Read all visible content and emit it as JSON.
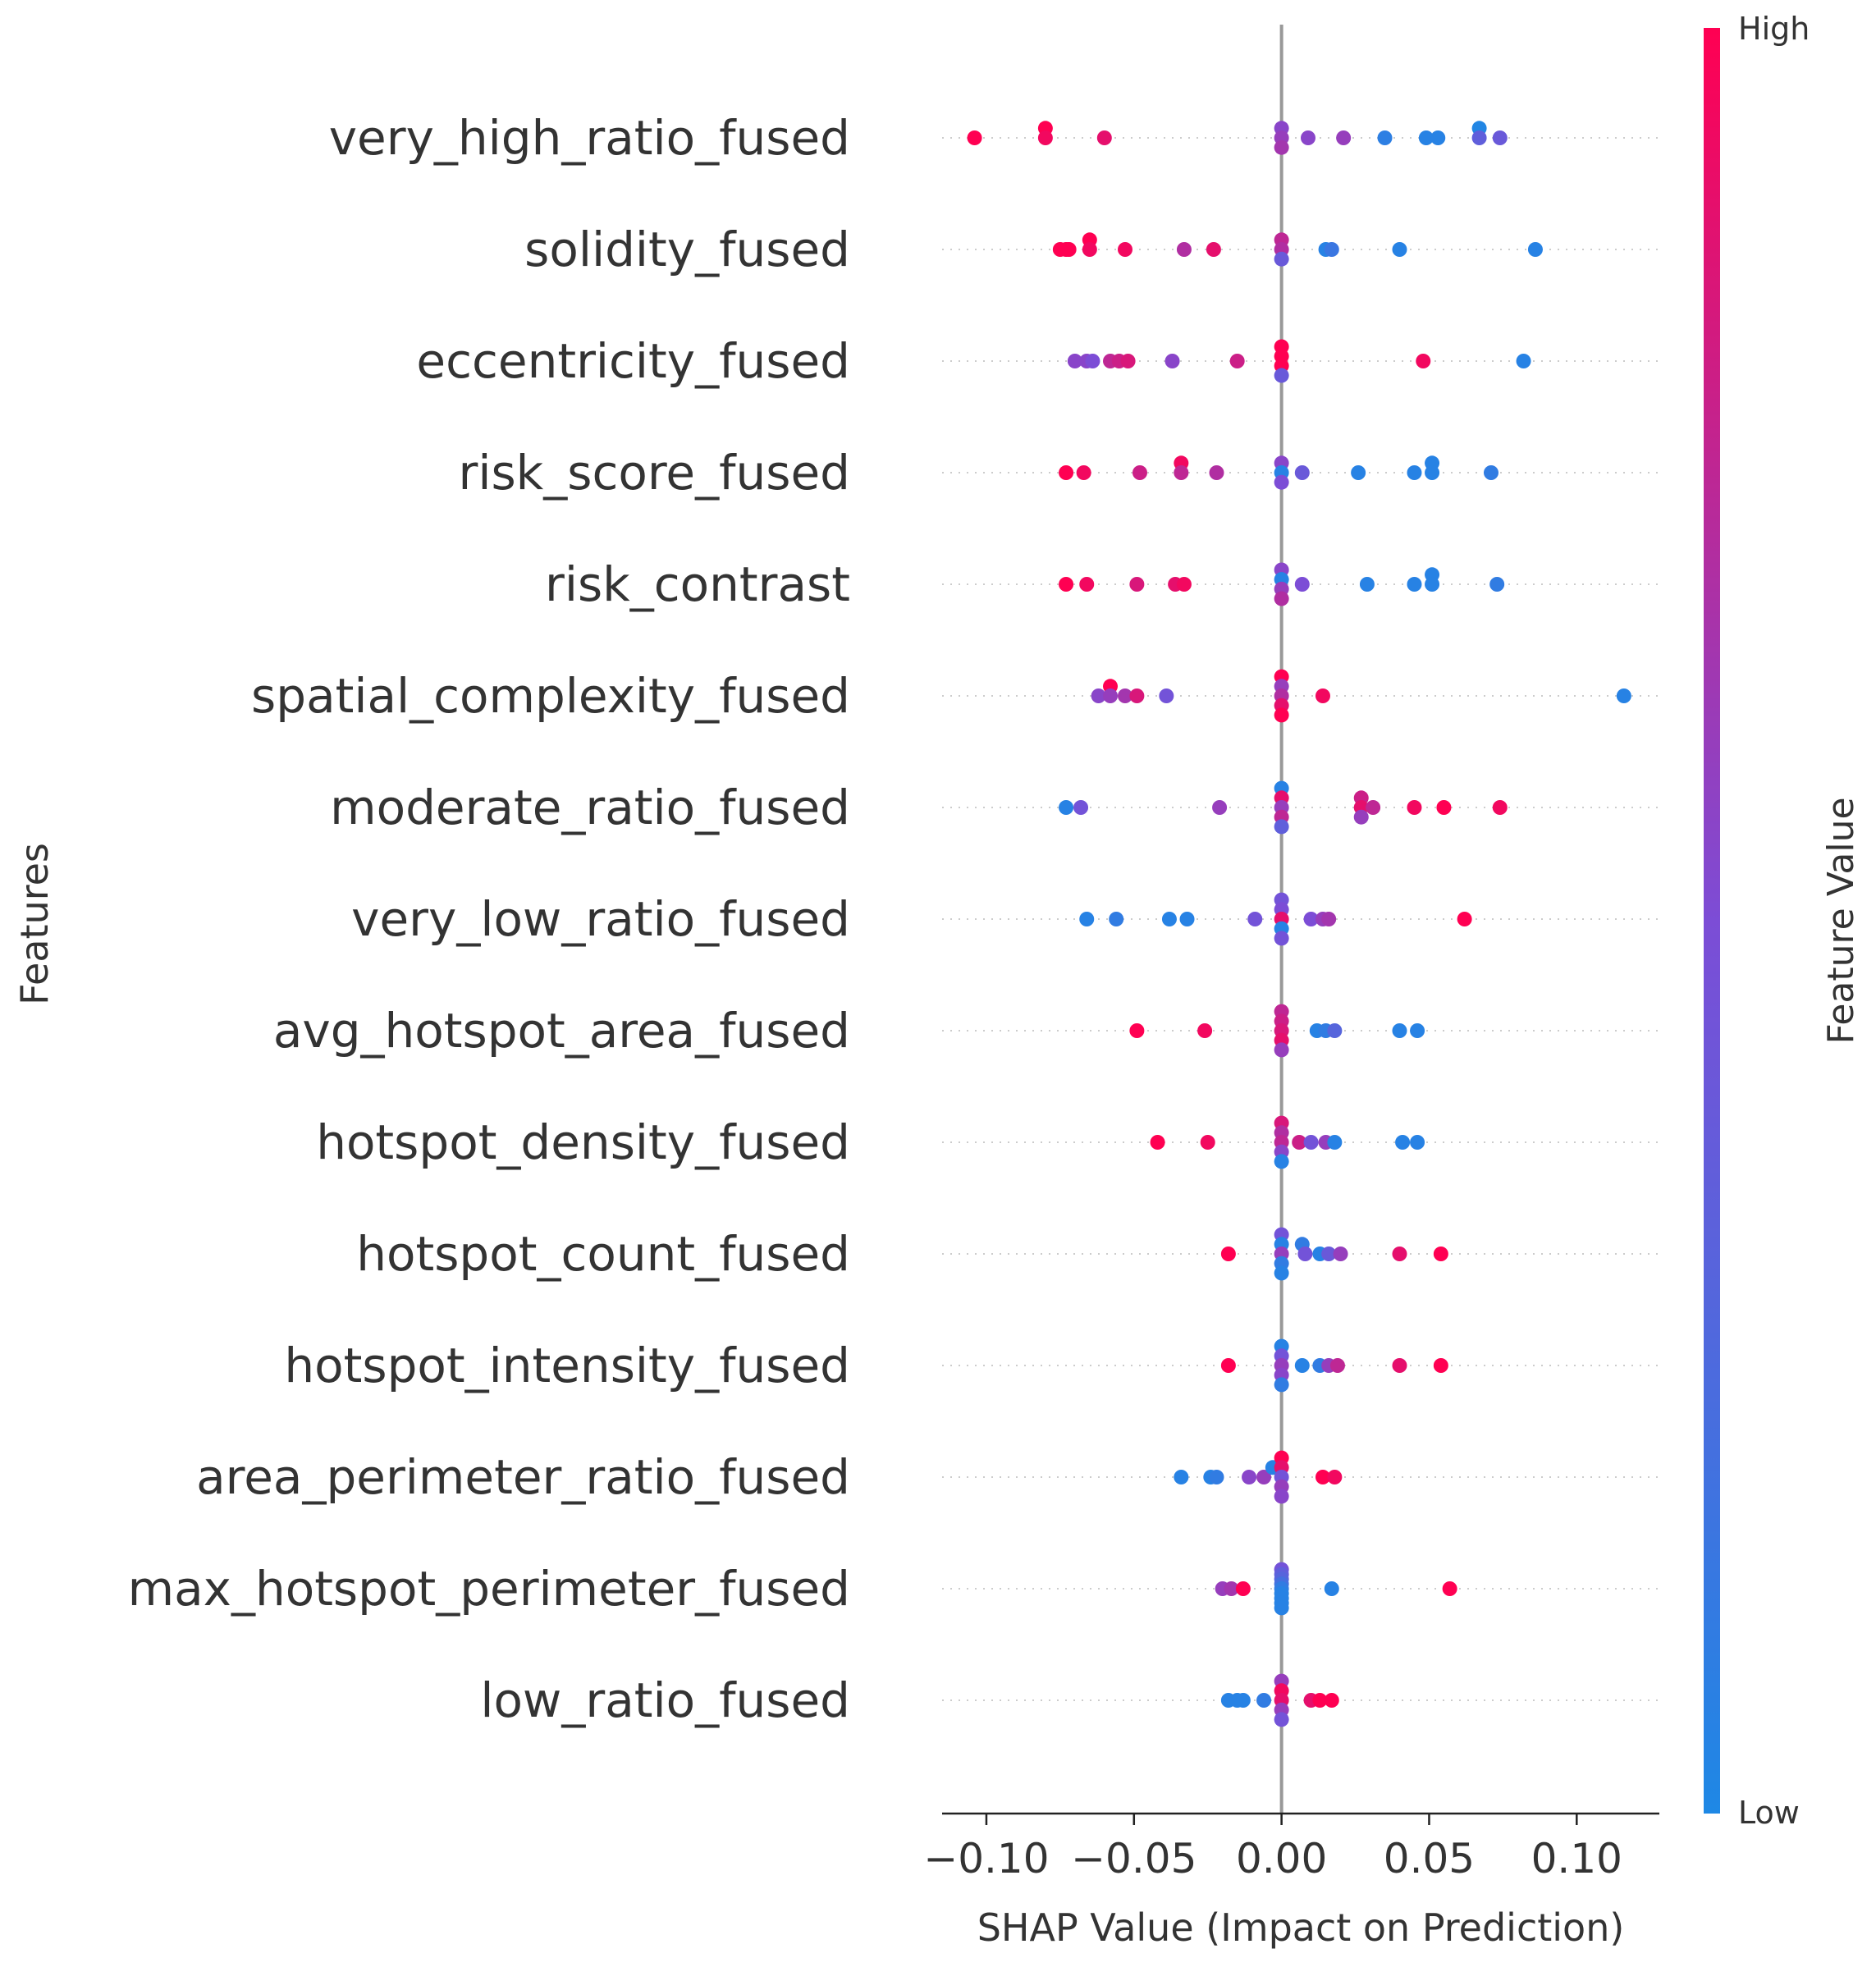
{
  "chart_data": {
    "type": "scatter",
    "subtype": "shap-beeswarm",
    "title": "",
    "xlabel": "SHAP Value (Impact on Prediction)",
    "ylabel": "Features",
    "xlim": [
      -0.115,
      0.128
    ],
    "xticks": [
      -0.1,
      -0.05,
      0.0,
      0.05,
      0.1
    ],
    "xtick_labels": [
      "−0.10",
      "−0.05",
      "0.00",
      "0.05",
      "0.10"
    ],
    "grid": false,
    "colorbar": {
      "label": "Feature Value",
      "high_label": "High",
      "low_label": "Low",
      "low_color": "#1e88e5",
      "mid_color": "#7c4dd6",
      "high_color": "#ff0052"
    },
    "zero_line_color": "#999999",
    "features": [
      {
        "name": "very_high_ratio_fused",
        "points": [
          [
            -0.08,
            0.9,
            1
          ],
          [
            -0.104,
            0,
            1
          ],
          [
            -0.08,
            0,
            0.95
          ],
          [
            -0.06,
            0,
            0.9
          ],
          [
            0.0,
            0.9,
            0.55
          ],
          [
            0.0,
            0,
            0.6
          ],
          [
            0.0,
            -0.9,
            0.65
          ],
          [
            0.009,
            0,
            0.55
          ],
          [
            0.021,
            0,
            0.6
          ],
          [
            0.035,
            0,
            0.08
          ],
          [
            0.049,
            0,
            0.05
          ],
          [
            0.053,
            0,
            0.05
          ],
          [
            0.067,
            0.9,
            0.02
          ],
          [
            0.067,
            0,
            0.35
          ],
          [
            0.074,
            0,
            0.4
          ]
        ]
      },
      {
        "name": "solidity_fused",
        "points": [
          [
            -0.065,
            0.9,
            1
          ],
          [
            -0.075,
            0,
            1
          ],
          [
            -0.073,
            0,
            1
          ],
          [
            -0.072,
            0,
            1
          ],
          [
            -0.065,
            0,
            0.95
          ],
          [
            -0.053,
            0,
            0.95
          ],
          [
            -0.033,
            0,
            0.7
          ],
          [
            -0.023,
            0,
            0.9
          ],
          [
            0.0,
            0.9,
            0.75
          ],
          [
            0.0,
            0,
            0.7
          ],
          [
            0.0,
            -0.9,
            0.4
          ],
          [
            0.015,
            0,
            0.05
          ],
          [
            0.017,
            0,
            0.15
          ],
          [
            0.04,
            0,
            0.05
          ],
          [
            0.086,
            0,
            0.05
          ]
        ]
      },
      {
        "name": "eccentricity_fused",
        "points": [
          [
            -0.07,
            0,
            0.55
          ],
          [
            -0.066,
            0,
            0.55
          ],
          [
            -0.064,
            0,
            0.5
          ],
          [
            -0.058,
            0,
            0.75
          ],
          [
            -0.055,
            0,
            0.8
          ],
          [
            -0.052,
            0,
            0.85
          ],
          [
            -0.037,
            0,
            0.55
          ],
          [
            -0.015,
            0,
            0.8
          ],
          [
            0.0,
            1.35,
            1
          ],
          [
            0.0,
            0.45,
            1
          ],
          [
            0.0,
            -0.45,
            1
          ],
          [
            0.0,
            -1.35,
            0.4
          ],
          [
            0.048,
            0,
            0.95
          ],
          [
            0.082,
            0,
            0.05
          ]
        ]
      },
      {
        "name": "risk_score_fused",
        "points": [
          [
            -0.073,
            0,
            1
          ],
          [
            -0.067,
            0,
            0.95
          ],
          [
            -0.048,
            0,
            0.8
          ],
          [
            -0.034,
            0.9,
            0.95
          ],
          [
            -0.034,
            0,
            0.75
          ],
          [
            -0.022,
            0,
            0.7
          ],
          [
            0.0,
            0.9,
            0.55
          ],
          [
            0.0,
            0,
            0.05
          ],
          [
            0.0,
            -0.9,
            0.5
          ],
          [
            0.007,
            0,
            0.4
          ],
          [
            0.026,
            0,
            0.05
          ],
          [
            0.045,
            0,
            0.05
          ],
          [
            0.051,
            0.9,
            0.05
          ],
          [
            0.051,
            0,
            0.05
          ],
          [
            0.071,
            0,
            0.1
          ]
        ]
      },
      {
        "name": "risk_contrast",
        "points": [
          [
            -0.073,
            0,
            1
          ],
          [
            -0.066,
            0,
            0.95
          ],
          [
            -0.049,
            0,
            0.85
          ],
          [
            -0.036,
            0,
            0.9
          ],
          [
            -0.033,
            0,
            0.95
          ],
          [
            0.0,
            1.35,
            0.55
          ],
          [
            0.0,
            0.45,
            0.05
          ],
          [
            0.0,
            -0.45,
            0.6
          ],
          [
            0.0,
            -1.35,
            0.7
          ],
          [
            0.007,
            0,
            0.5
          ],
          [
            0.029,
            0,
            0.05
          ],
          [
            0.045,
            0,
            0.05
          ],
          [
            0.051,
            0.9,
            0.05
          ],
          [
            0.051,
            0,
            0.05
          ],
          [
            0.073,
            0,
            0.1
          ]
        ]
      },
      {
        "name": "spatial_complexity_fused",
        "points": [
          [
            -0.058,
            0.9,
            1
          ],
          [
            -0.062,
            0,
            0.55
          ],
          [
            -0.058,
            0,
            0.6
          ],
          [
            -0.053,
            0,
            0.65
          ],
          [
            -0.049,
            0,
            0.85
          ],
          [
            -0.039,
            0,
            0.45
          ],
          [
            0.0,
            1.8,
            1
          ],
          [
            0.0,
            0.9,
            0.6
          ],
          [
            0.0,
            0,
            0.7
          ],
          [
            0.0,
            -0.9,
            0.9
          ],
          [
            0.0,
            -1.8,
            1
          ],
          [
            0.014,
            0,
            0.95
          ],
          [
            0.116,
            0,
            0.05
          ]
        ]
      },
      {
        "name": "moderate_ratio_fused",
        "points": [
          [
            -0.073,
            0,
            0.05
          ],
          [
            -0.068,
            0,
            0.45
          ],
          [
            -0.021,
            0,
            0.6
          ],
          [
            0.0,
            1.8,
            0.05
          ],
          [
            0.0,
            0.9,
            0.9
          ],
          [
            0.0,
            0,
            0.6
          ],
          [
            0.0,
            -0.9,
            0.75
          ],
          [
            0.0,
            -1.8,
            0.35
          ],
          [
            0.027,
            0.9,
            0.8
          ],
          [
            0.027,
            0,
            0.9
          ],
          [
            0.027,
            -0.9,
            0.6
          ],
          [
            0.031,
            0,
            0.75
          ],
          [
            0.045,
            0,
            0.95
          ],
          [
            0.055,
            0,
            1
          ],
          [
            0.074,
            0,
            0.95
          ]
        ]
      },
      {
        "name": "very_low_ratio_fused",
        "points": [
          [
            -0.066,
            0,
            0.05
          ],
          [
            -0.056,
            0,
            0.1
          ],
          [
            -0.038,
            0,
            0.05
          ],
          [
            -0.032,
            0,
            0.05
          ],
          [
            -0.009,
            0,
            0.45
          ],
          [
            0.0,
            1.8,
            0.45
          ],
          [
            0.0,
            0.9,
            0.5
          ],
          [
            0.0,
            0,
            0.9
          ],
          [
            0.0,
            -0.9,
            0.05
          ],
          [
            0.0,
            -1.8,
            0.45
          ],
          [
            0.01,
            0,
            0.5
          ],
          [
            0.014,
            0,
            0.6
          ],
          [
            0.016,
            0,
            0.65
          ],
          [
            0.062,
            0,
            1
          ]
        ]
      },
      {
        "name": "avg_hotspot_area_fused",
        "points": [
          [
            -0.049,
            0,
            1
          ],
          [
            -0.026,
            0,
            0.95
          ],
          [
            0.0,
            1.8,
            0.75
          ],
          [
            0.0,
            0.9,
            0.8
          ],
          [
            0.0,
            0,
            0.85
          ],
          [
            0.0,
            -0.9,
            0.9
          ],
          [
            0.0,
            -1.8,
            0.6
          ],
          [
            0.012,
            0,
            0.05
          ],
          [
            0.015,
            0,
            0.1
          ],
          [
            0.018,
            0,
            0.3
          ],
          [
            0.04,
            0,
            0.05
          ],
          [
            0.046,
            0,
            0.05
          ]
        ]
      },
      {
        "name": "hotspot_density_fused",
        "points": [
          [
            -0.042,
            0,
            1
          ],
          [
            -0.025,
            0,
            0.95
          ],
          [
            0.0,
            1.8,
            0.85
          ],
          [
            0.0,
            0.9,
            0.7
          ],
          [
            0.0,
            0,
            0.75
          ],
          [
            0.0,
            -0.9,
            0.55
          ],
          [
            0.0,
            -1.8,
            0.05
          ],
          [
            0.006,
            0,
            0.8
          ],
          [
            0.01,
            0,
            0.45
          ],
          [
            0.015,
            0,
            0.6
          ],
          [
            0.018,
            0,
            0.05
          ],
          [
            0.041,
            0,
            0.05
          ],
          [
            0.046,
            0,
            0.05
          ]
        ]
      },
      {
        "name": "hotspot_count_fused",
        "points": [
          [
            -0.018,
            0,
            1
          ],
          [
            0.0,
            1.8,
            0.45
          ],
          [
            0.0,
            0.9,
            0.05
          ],
          [
            0.0,
            0,
            0.6
          ],
          [
            0.0,
            -0.9,
            0.1
          ],
          [
            0.0,
            -1.8,
            0.05
          ],
          [
            0.007,
            0.9,
            0.1
          ],
          [
            0.008,
            0,
            0.45
          ],
          [
            0.013,
            0,
            0.05
          ],
          [
            0.016,
            0,
            0.4
          ],
          [
            0.02,
            0,
            0.6
          ],
          [
            0.04,
            0,
            0.9
          ],
          [
            0.054,
            0,
            1
          ]
        ]
      },
      {
        "name": "hotspot_intensity_fused",
        "points": [
          [
            -0.018,
            0,
            1
          ],
          [
            0.0,
            1.8,
            0.05
          ],
          [
            0.0,
            0.9,
            0.45
          ],
          [
            0.0,
            0,
            0.6
          ],
          [
            0.0,
            -0.9,
            0.55
          ],
          [
            0.0,
            -1.8,
            0.1
          ],
          [
            0.007,
            0,
            0.05
          ],
          [
            0.013,
            0,
            0.1
          ],
          [
            0.016,
            0,
            0.6
          ],
          [
            0.019,
            0,
            0.75
          ],
          [
            0.04,
            0,
            0.9
          ],
          [
            0.054,
            0,
            1
          ]
        ]
      },
      {
        "name": "area_perimeter_ratio_fused",
        "points": [
          [
            -0.034,
            0,
            0.05
          ],
          [
            -0.024,
            0,
            0.05
          ],
          [
            -0.022,
            0,
            0.1
          ],
          [
            -0.011,
            0,
            0.55
          ],
          [
            -0.006,
            0,
            0.6
          ],
          [
            -0.003,
            0.9,
            0.05
          ],
          [
            0.0,
            1.8,
            1
          ],
          [
            0.0,
            0.9,
            0.9
          ],
          [
            0.0,
            0,
            0.45
          ],
          [
            0.0,
            -0.9,
            0.6
          ],
          [
            0.0,
            -1.8,
            0.55
          ],
          [
            0.014,
            0,
            1
          ],
          [
            0.018,
            0,
            0.95
          ]
        ]
      },
      {
        "name": "max_hotspot_perimeter_fused",
        "points": [
          [
            -0.02,
            0,
            0.6
          ],
          [
            -0.017,
            0,
            0.65
          ],
          [
            -0.013,
            0,
            1
          ],
          [
            0.0,
            1.8,
            0.45
          ],
          [
            0.0,
            1.35,
            0.35
          ],
          [
            0.0,
            0.9,
            0.3
          ],
          [
            0.0,
            0.45,
            0.2
          ],
          [
            0.0,
            0,
            0.1
          ],
          [
            0.0,
            -0.45,
            0.05
          ],
          [
            0.0,
            -0.9,
            0.05
          ],
          [
            0.0,
            -1.35,
            0.05
          ],
          [
            0.0,
            -1.8,
            0.05
          ],
          [
            0.017,
            0,
            0.05
          ],
          [
            0.057,
            0,
            1
          ]
        ]
      },
      {
        "name": "low_ratio_fused",
        "points": [
          [
            -0.018,
            0,
            0.05
          ],
          [
            -0.015,
            0,
            0.05
          ],
          [
            -0.013,
            0,
            0.05
          ],
          [
            -0.006,
            0,
            0.1
          ],
          [
            0.0,
            1.8,
            0.6
          ],
          [
            0.0,
            0.9,
            0.95
          ],
          [
            0.0,
            0,
            0.9
          ],
          [
            0.0,
            -0.9,
            0.6
          ],
          [
            0.0,
            -1.8,
            0.45
          ],
          [
            0.01,
            0,
            0.9
          ],
          [
            0.013,
            0,
            1
          ],
          [
            0.017,
            0,
            1
          ]
        ]
      }
    ]
  }
}
